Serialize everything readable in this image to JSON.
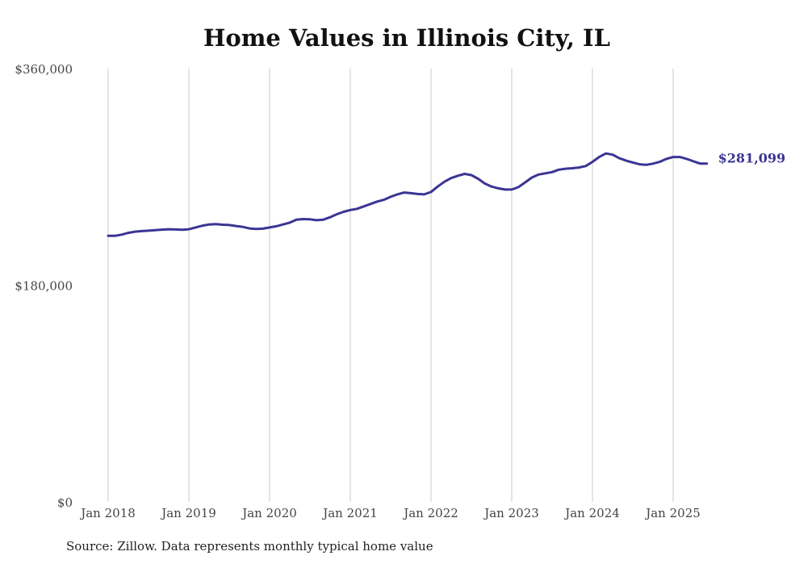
{
  "chart_data": {
    "type": "line",
    "title": "Home Values in Illinois City, IL",
    "source": "Source: Zillow. Data represents monthly typical home value",
    "ylim": [
      0,
      360000
    ],
    "y_ticks": [
      0,
      180000,
      360000
    ],
    "y_tick_labels": [
      "$0",
      "$180,000",
      "$360,000"
    ],
    "x_tick_labels": [
      "Jan 2018",
      "Jan 2019",
      "Jan 2020",
      "Jan 2021",
      "Jan 2022",
      "Jan 2023",
      "Jan 2024",
      "Jan 2025"
    ],
    "x_tick_dates": [
      "2018-01",
      "2019-01",
      "2020-01",
      "2021-01",
      "2022-01",
      "2023-01",
      "2024-01",
      "2025-01"
    ],
    "grid": "vertical",
    "line_color": "#3b3594",
    "end_label": "$281,099",
    "series": [
      {
        "x": [
          "2018-01",
          "2018-02",
          "2018-03",
          "2018-04",
          "2018-05",
          "2018-06",
          "2018-07",
          "2018-08",
          "2018-09",
          "2018-10",
          "2018-11",
          "2018-12",
          "2019-01",
          "2019-02",
          "2019-03",
          "2019-04",
          "2019-05",
          "2019-06",
          "2019-07",
          "2019-08",
          "2019-09",
          "2019-10",
          "2019-11",
          "2019-12",
          "2020-01",
          "2020-02",
          "2020-03",
          "2020-04",
          "2020-05",
          "2020-06",
          "2020-07",
          "2020-08",
          "2020-09",
          "2020-10",
          "2020-11",
          "2020-12",
          "2021-01",
          "2021-02",
          "2021-03",
          "2021-04",
          "2021-05",
          "2021-06",
          "2021-07",
          "2021-08",
          "2021-09",
          "2021-10",
          "2021-11",
          "2021-12",
          "2022-01",
          "2022-02",
          "2022-03",
          "2022-04",
          "2022-05",
          "2022-06",
          "2022-07",
          "2022-08",
          "2022-09",
          "2022-10",
          "2022-11",
          "2022-12",
          "2023-01",
          "2023-02",
          "2023-03",
          "2023-04",
          "2023-05",
          "2023-06",
          "2023-07",
          "2023-08",
          "2023-09",
          "2023-10",
          "2023-11",
          "2023-12",
          "2024-01",
          "2024-02",
          "2024-03",
          "2024-04",
          "2024-05",
          "2024-06",
          "2024-07",
          "2024-08",
          "2024-09",
          "2024-10",
          "2024-11",
          "2024-12",
          "2025-01",
          "2025-02",
          "2025-03",
          "2025-04",
          "2025-05",
          "2025-06"
        ],
        "values": [
          221000,
          221000,
          222000,
          223500,
          224500,
          225000,
          225300,
          225700,
          226200,
          226500,
          226300,
          226100,
          226500,
          228000,
          229500,
          230500,
          230800,
          230300,
          230000,
          229200,
          228500,
          227200,
          226800,
          227000,
          228000,
          229000,
          230500,
          232000,
          234500,
          235000,
          234800,
          234000,
          234500,
          236500,
          239000,
          241000,
          242500,
          243500,
          245500,
          247500,
          249500,
          251000,
          253500,
          255500,
          257000,
          256500,
          255800,
          255500,
          257500,
          262000,
          266000,
          269000,
          271000,
          272500,
          271500,
          268500,
          264500,
          262000,
          260500,
          259500,
          259500,
          261500,
          265500,
          269500,
          272000,
          273000,
          274000,
          276000,
          276800,
          277200,
          277800,
          279000,
          282500,
          286500,
          289500,
          288500,
          285500,
          283500,
          282000,
          280500,
          280000,
          281000,
          282500,
          285000,
          286500,
          286500,
          285000,
          283000,
          281099,
          281099
        ]
      }
    ]
  }
}
